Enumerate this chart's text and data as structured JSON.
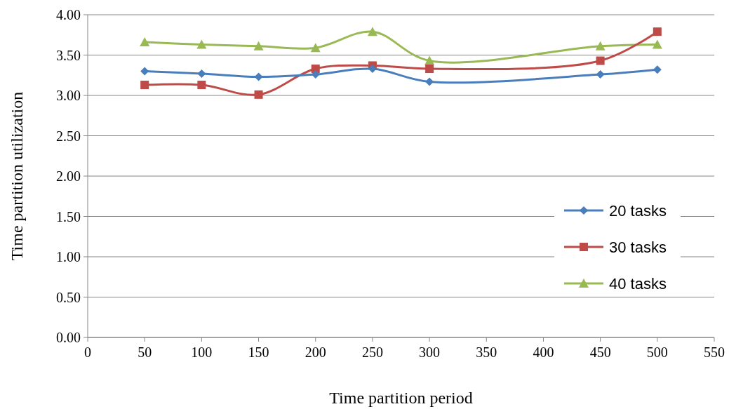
{
  "chart_data": {
    "type": "line",
    "xlabel": "Time partition period",
    "ylabel": "Time partition utilization",
    "xlim": [
      0,
      550
    ],
    "xticks": [
      0,
      50,
      100,
      150,
      200,
      250,
      300,
      350,
      400,
      450,
      500,
      550
    ],
    "ylim": [
      0,
      4
    ],
    "yticks": [
      {
        "value": 0,
        "label": "0.00"
      },
      {
        "value": 0.5,
        "label": "0.50"
      },
      {
        "value": 1,
        "label": "1.00"
      },
      {
        "value": 1.5,
        "label": "1.50"
      },
      {
        "value": 2,
        "label": "2.00"
      },
      {
        "value": 2.5,
        "label": "2.50"
      },
      {
        "value": 3,
        "label": "3.00"
      },
      {
        "value": 3.5,
        "label": "3.50"
      },
      {
        "value": 4,
        "label": "4.00"
      }
    ],
    "grid": "y",
    "legend": "right",
    "line_style": "solid",
    "x": [
      50,
      100,
      150,
      200,
      250,
      300,
      450,
      500
    ],
    "series": [
      {
        "name": "20 tasks",
        "color": "#4a7ebb",
        "marker": "diamond",
        "values": [
          3.3,
          3.27,
          3.23,
          3.26,
          3.33,
          3.17,
          3.26,
          3.32
        ]
      },
      {
        "name": "30 tasks",
        "color": "#be4b48",
        "marker": "square",
        "values": [
          3.13,
          3.13,
          3.01,
          3.33,
          3.37,
          3.33,
          3.43,
          3.79
        ]
      },
      {
        "name": "40 tasks",
        "color": "#98b954",
        "marker": "triangle",
        "values": [
          3.66,
          3.63,
          3.61,
          3.59,
          3.79,
          3.43,
          3.61,
          3.63
        ]
      }
    ]
  }
}
